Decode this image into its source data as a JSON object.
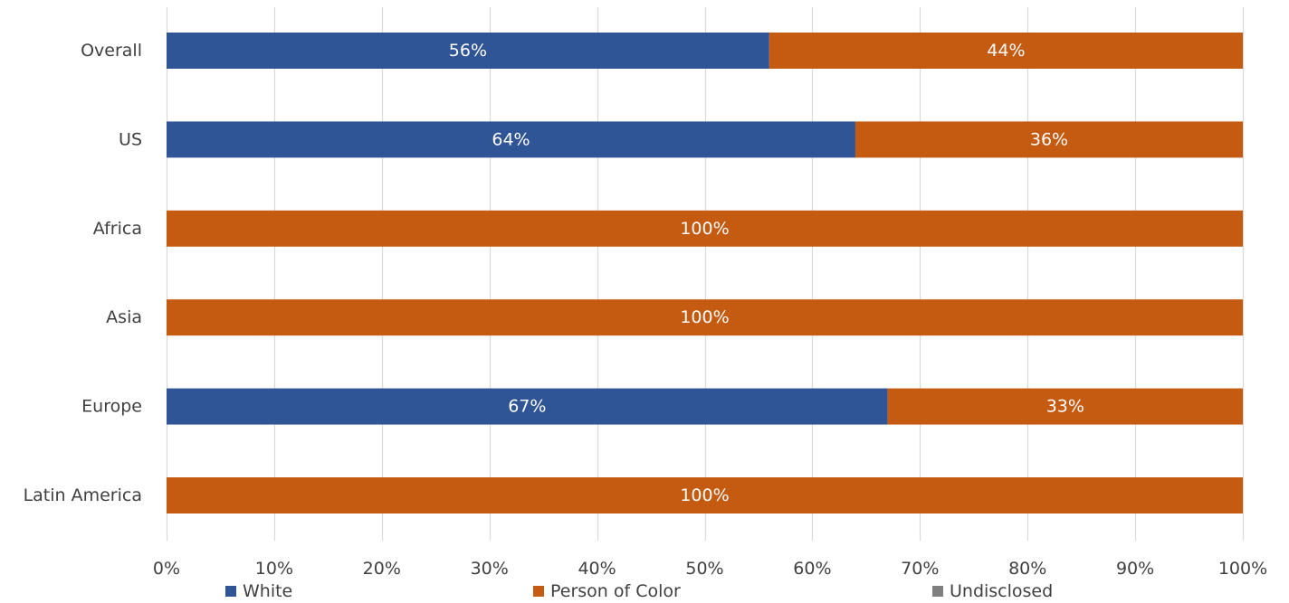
{
  "chart_data": {
    "type": "bar",
    "orientation": "horizontal",
    "stacked": "percent",
    "title": "",
    "xlabel": "",
    "ylabel": "",
    "categories": [
      "Overall",
      "US",
      "Africa",
      "Asia",
      "Europe",
      "Latin America"
    ],
    "series": [
      {
        "name": "White",
        "color": "#2F5597",
        "values": [
          56,
          64,
          0,
          0,
          67,
          0
        ],
        "labels": [
          "56%",
          "64%",
          "",
          "",
          "67%",
          ""
        ]
      },
      {
        "name": "Person of Color",
        "color": "#C55A11",
        "values": [
          44,
          36,
          100,
          100,
          33,
          100
        ],
        "labels": [
          "44%",
          "36%",
          "100%",
          "100%",
          "33%",
          "100%"
        ]
      },
      {
        "name": "Undisclosed",
        "color": "#7F7F7F",
        "values": [
          0,
          0,
          0,
          0,
          0,
          0
        ],
        "labels": [
          "",
          "",
          "",
          "",
          "",
          ""
        ]
      }
    ],
    "x_ticks": [
      "0%",
      "10%",
      "20%",
      "30%",
      "40%",
      "50%",
      "60%",
      "70%",
      "80%",
      "90%",
      "100%"
    ],
    "xlim": [
      0,
      100
    ],
    "grid": "vertical",
    "legend_position": "bottom"
  }
}
